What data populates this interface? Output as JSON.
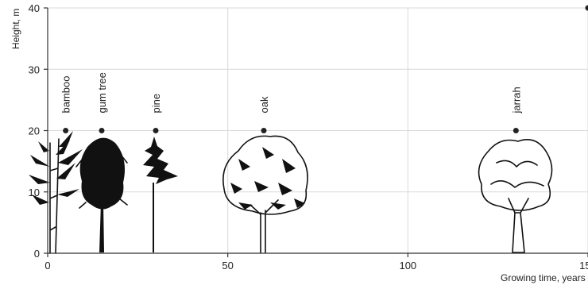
{
  "chart_data": {
    "type": "scatter",
    "title": "",
    "xlabel": "Growing time, years",
    "ylabel": "Height, m",
    "xlim": [
      0,
      150
    ],
    "ylim": [
      0,
      40
    ],
    "xticks": [
      0,
      50,
      100,
      150
    ],
    "yticks": [
      0,
      10,
      20,
      30,
      40
    ],
    "grid": true,
    "points": [
      {
        "label": "bamboo",
        "x": 5,
        "y": 20,
        "icon": "bamboo-icon"
      },
      {
        "label": "gum tree",
        "x": 15,
        "y": 20,
        "icon": "gum-tree-icon"
      },
      {
        "label": "pine",
        "x": 30,
        "y": 20,
        "icon": "pine-icon"
      },
      {
        "label": "oak",
        "x": 60,
        "y": 20,
        "icon": "oak-icon"
      },
      {
        "label": "jarrah",
        "x": 130,
        "y": 20,
        "icon": "jarrah-icon"
      },
      {
        "label": "",
        "x": 150,
        "y": 40
      }
    ]
  }
}
